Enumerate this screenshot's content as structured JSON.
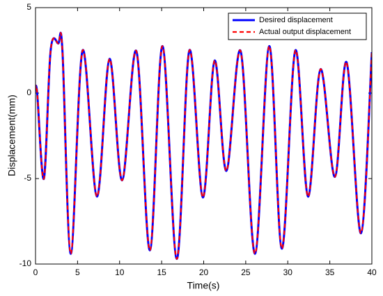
{
  "chart_data": {
    "type": "line",
    "xlabel": "Time(s)",
    "ylabel": "Displacement(mm)",
    "x": [
      0,
      0.2,
      1.0,
      1.8,
      2.7,
      3.2,
      4.2,
      5.6,
      7.3,
      8.8,
      10.3,
      12.0,
      13.6,
      15.1,
      16.8,
      18.3,
      19.9,
      21.3,
      22.7,
      24.4,
      26.1,
      27.8,
      29.3,
      30.9,
      32.4,
      33.9,
      35.6,
      37.0,
      38.7,
      40
    ],
    "series": [
      {
        "name": "Desired displacement",
        "color": "#0000ff",
        "style": "solid",
        "values": [
          0.2,
          0,
          -5.0,
          2.5,
          2.9,
          2.5,
          -9.4,
          2.5,
          -6.05,
          2.0,
          -5.1,
          2.45,
          -9.2,
          2.75,
          -9.7,
          2.5,
          -6.1,
          1.9,
          -4.55,
          2.45,
          -9.4,
          2.75,
          -9.1,
          2.5,
          -6.05,
          1.4,
          -4.9,
          1.8,
          -8.2,
          2.4
        ]
      },
      {
        "name": "Actual output displacement",
        "color": "#ff0000",
        "style": "dashed",
        "values": [
          0.2,
          0,
          -5.0,
          2.5,
          2.9,
          2.5,
          -9.4,
          2.5,
          -6.05,
          2.0,
          -5.1,
          2.45,
          -9.2,
          2.75,
          -9.7,
          2.5,
          -6.1,
          1.9,
          -4.55,
          2.45,
          -9.4,
          2.75,
          -9.1,
          2.5,
          -6.05,
          1.4,
          -4.9,
          1.8,
          -8.2,
          2.4
        ]
      }
    ],
    "xlim": [
      0,
      40
    ],
    "xticks": [
      0,
      5,
      10,
      15,
      20,
      25,
      30,
      35,
      40
    ],
    "ylim": [
      -10,
      5
    ],
    "yticks": [
      -10,
      -5,
      0,
      5
    ],
    "grid": false,
    "legend": "northeast"
  }
}
